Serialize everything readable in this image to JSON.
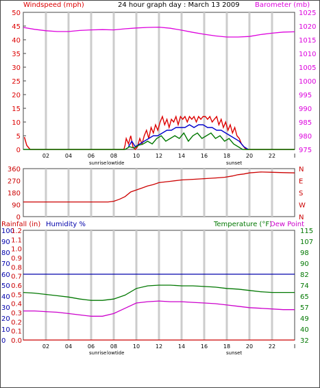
{
  "header": {
    "left_label": "Windspeed (mph)",
    "title": "24 hour graph day : March 13 2009",
    "right_label": "Barometer (mb)"
  },
  "colors": {
    "wind": "#dd0000",
    "gust": "#dd0000",
    "barometer": "#dd00dd",
    "direction": "#cc0000",
    "rain": "#cc0000",
    "humidity": "#0000aa",
    "temperature": "#007700",
    "dewpoint": "#cc00cc",
    "grid": "#cccccc",
    "frame": "#444444"
  },
  "x_axis": {
    "tick_labels": [
      "02",
      "04",
      "06",
      "08",
      "10",
      "12",
      "14",
      "16",
      "18",
      "20",
      "22",
      "I"
    ],
    "markers": {
      "sunrise": "sunrise",
      "lowtide": "lowtide",
      "sunset": "sunset"
    }
  },
  "chart_data": [
    {
      "type": "line",
      "name": "wind-barometer",
      "title": "24 hour graph day : March 13 2009",
      "ylabel": "Windspeed (mph)",
      "ylabel_right": "Barometer (mb)",
      "ylim": [
        0,
        50
      ],
      "yticks": [
        "0",
        "5",
        "10",
        "15",
        "20",
        "25",
        "30",
        "35",
        "40",
        "45",
        "50"
      ],
      "ylim_right": [
        975,
        1025
      ],
      "yticks_right": [
        "975",
        "980",
        "985",
        "990",
        "995",
        "1000",
        "1005",
        "1010",
        "1015",
        "1020",
        "1025"
      ],
      "series": [
        {
          "name": "Windspeed (mph)",
          "axis": "left",
          "values": [
            [
              0.1,
              4.5
            ],
            [
              0.3,
              1.5
            ],
            [
              0.6,
              0
            ],
            [
              1.2,
              0
            ],
            [
              5,
              0
            ],
            [
              8,
              0
            ],
            [
              8.9,
              0
            ],
            [
              9.0,
              1.5
            ],
            [
              9.1,
              4
            ],
            [
              9.3,
              2
            ],
            [
              9.5,
              5
            ],
            [
              9.7,
              1
            ],
            [
              9.9,
              0
            ],
            [
              10.1,
              1
            ],
            [
              10.3,
              4
            ],
            [
              10.5,
              2
            ],
            [
              10.7,
              5
            ],
            [
              10.9,
              7
            ],
            [
              11.1,
              4
            ],
            [
              11.3,
              8
            ],
            [
              11.5,
              6
            ],
            [
              11.7,
              9
            ],
            [
              11.9,
              7
            ],
            [
              12.1,
              10
            ],
            [
              12.3,
              12
            ],
            [
              12.5,
              9
            ],
            [
              12.7,
              11
            ],
            [
              12.9,
              8
            ],
            [
              13.1,
              11
            ],
            [
              13.3,
              10
            ],
            [
              13.5,
              12
            ],
            [
              13.7,
              9
            ],
            [
              13.9,
              12
            ],
            [
              14.1,
              11
            ],
            [
              14.3,
              12
            ],
            [
              14.5,
              10
            ],
            [
              14.7,
              12
            ],
            [
              14.9,
              11
            ],
            [
              15.1,
              12
            ],
            [
              15.3,
              10
            ],
            [
              15.5,
              12
            ],
            [
              15.7,
              11
            ],
            [
              15.9,
              12
            ],
            [
              16.1,
              12
            ],
            [
              16.3,
              11
            ],
            [
              16.5,
              12
            ],
            [
              16.7,
              10
            ],
            [
              16.9,
              11
            ],
            [
              17.1,
              12
            ],
            [
              17.3,
              9
            ],
            [
              17.5,
              11
            ],
            [
              17.7,
              8
            ],
            [
              17.9,
              10
            ],
            [
              18.1,
              7
            ],
            [
              18.3,
              9
            ],
            [
              18.5,
              6
            ],
            [
              18.7,
              8
            ],
            [
              18.9,
              5
            ],
            [
              19.1,
              4
            ],
            [
              19.3,
              2
            ],
            [
              19.5,
              1
            ],
            [
              19.7,
              0
            ],
            [
              20,
              0
            ],
            [
              24,
              0
            ]
          ]
        },
        {
          "name": "Gust",
          "axis": "left",
          "values": [
            [
              9.3,
              1
            ],
            [
              9.6,
              3
            ],
            [
              9.9,
              1
            ],
            [
              10.3,
              2
            ],
            [
              10.7,
              3
            ],
            [
              11.1,
              4
            ],
            [
              11.5,
              5
            ],
            [
              11.9,
              5
            ],
            [
              12.3,
              6
            ],
            [
              12.7,
              7
            ],
            [
              13.1,
              7
            ],
            [
              13.5,
              8
            ],
            [
              13.9,
              8
            ],
            [
              14.3,
              8
            ],
            [
              14.7,
              9
            ],
            [
              15.1,
              8
            ],
            [
              15.5,
              9
            ],
            [
              15.9,
              9
            ],
            [
              16.3,
              8
            ],
            [
              16.7,
              8
            ],
            [
              17.1,
              7
            ],
            [
              17.5,
              7
            ],
            [
              17.9,
              6
            ],
            [
              18.3,
              5
            ],
            [
              18.7,
              4
            ],
            [
              19.1,
              3
            ],
            [
              19.5,
              1
            ],
            [
              19.9,
              0
            ]
          ]
        },
        {
          "name": "Wind avg",
          "axis": "left",
          "values": [
            [
              0,
              0
            ],
            [
              9,
              0
            ],
            [
              9.4,
              1
            ],
            [
              9.8,
              0.5
            ],
            [
              10.2,
              1.5
            ],
            [
              10.6,
              2
            ],
            [
              11,
              3
            ],
            [
              11.4,
              2
            ],
            [
              11.8,
              4
            ],
            [
              12.2,
              5
            ],
            [
              12.6,
              3
            ],
            [
              13,
              4
            ],
            [
              13.4,
              5
            ],
            [
              13.8,
              4
            ],
            [
              14.2,
              6
            ],
            [
              14.6,
              3
            ],
            [
              15,
              5
            ],
            [
              15.4,
              6
            ],
            [
              15.8,
              4
            ],
            [
              16.2,
              5
            ],
            [
              16.6,
              6
            ],
            [
              17,
              4
            ],
            [
              17.4,
              5
            ],
            [
              17.8,
              3
            ],
            [
              18.2,
              4
            ],
            [
              18.6,
              2
            ],
            [
              19,
              1
            ],
            [
              19.4,
              0
            ],
            [
              24,
              0
            ]
          ]
        },
        {
          "name": "Barometer (mb)",
          "axis": "right",
          "values": [
            [
              0,
              1019.5
            ],
            [
              1,
              1018.8
            ],
            [
              2,
              1018.3
            ],
            [
              3,
              1018
            ],
            [
              4,
              1018
            ],
            [
              5,
              1018.4
            ],
            [
              6,
              1018.6
            ],
            [
              7,
              1018.7
            ],
            [
              8,
              1018.6
            ],
            [
              9,
              1019.0
            ],
            [
              10,
              1019.3
            ],
            [
              11,
              1019.5
            ],
            [
              12,
              1019.6
            ],
            [
              13,
              1019.2
            ],
            [
              14,
              1018.5
            ],
            [
              15,
              1017.7
            ],
            [
              16,
              1017
            ],
            [
              17,
              1016.4
            ],
            [
              18,
              1016
            ],
            [
              19,
              1016
            ],
            [
              20,
              1016.2
            ],
            [
              21,
              1016.9
            ],
            [
              22,
              1017.4
            ],
            [
              23,
              1017.8
            ],
            [
              24,
              1017.9
            ]
          ]
        }
      ]
    },
    {
      "type": "line",
      "name": "wind-direction",
      "ylim": [
        0,
        360
      ],
      "yticks": [
        "0",
        "90",
        "180",
        "270",
        "360"
      ],
      "yticks_right": [
        "N",
        "W",
        "S",
        "E",
        "N"
      ],
      "series": [
        {
          "name": "Direction",
          "values": [
            [
              0,
              110
            ],
            [
              2,
              110
            ],
            [
              4,
              110
            ],
            [
              6,
              110
            ],
            [
              7.5,
              110
            ],
            [
              8,
              115
            ],
            [
              8.5,
              130
            ],
            [
              9,
              150
            ],
            [
              9.5,
              185
            ],
            [
              10,
              200
            ],
            [
              10.5,
              215
            ],
            [
              11,
              230
            ],
            [
              11.5,
              240
            ],
            [
              12,
              255
            ],
            [
              13,
              265
            ],
            [
              14,
              275
            ],
            [
              15,
              280
            ],
            [
              16,
              285
            ],
            [
              17,
              290
            ],
            [
              17.8,
              295
            ],
            [
              18.5,
              305
            ],
            [
              19,
              315
            ],
            [
              19.5,
              320
            ],
            [
              20,
              328
            ],
            [
              21,
              335
            ],
            [
              22,
              333
            ],
            [
              23,
              330
            ],
            [
              24,
              328
            ]
          ]
        }
      ]
    },
    {
      "type": "line",
      "name": "temp-humidity-rain",
      "left_label_rain": "Rainfall (in)",
      "left_label_humidity": "Humidity %",
      "right_label_temp": "Temperature (°F)",
      "right_label_dew": "Dew Point",
      "ylim_humidity": [
        0,
        100
      ],
      "yticks_humidity": [
        "0",
        "10",
        "20",
        "30",
        "40",
        "50",
        "60",
        "70",
        "80",
        "90",
        "100"
      ],
      "yticks_rain": [
        "0.0",
        "0.1",
        "0.2",
        "0.3",
        "0.4",
        "0.5",
        "0.6",
        "0.7",
        "0.8",
        "0.9",
        "1.0",
        "1.1",
        "1.2"
      ],
      "ylim_temp": [
        32,
        115
      ],
      "yticks_temp": [
        "32",
        "40",
        "49",
        "57",
        "65",
        "74",
        "82",
        "90",
        "98",
        "107",
        "115"
      ],
      "series": [
        {
          "name": "Rainfall (in)",
          "values": [
            [
              0,
              0
            ],
            [
              24,
              0
            ]
          ]
        },
        {
          "name": "Humidity %",
          "values": [
            [
              0,
              60
            ],
            [
              24,
              60
            ]
          ]
        },
        {
          "name": "Temperature (°F)",
          "values": [
            [
              0,
              68
            ],
            [
              1,
              67.5
            ],
            [
              2,
              66.5
            ],
            [
              3,
              65.5
            ],
            [
              4,
              64.5
            ],
            [
              5,
              63
            ],
            [
              6,
              62
            ],
            [
              7,
              62
            ],
            [
              8,
              63
            ],
            [
              9,
              66
            ],
            [
              10,
              71
            ],
            [
              11,
              73
            ],
            [
              12,
              73.5
            ],
            [
              13,
              73.5
            ],
            [
              14,
              73
            ],
            [
              15,
              73
            ],
            [
              16,
              72.5
            ],
            [
              17,
              72
            ],
            [
              18,
              71
            ],
            [
              19,
              70.5
            ],
            [
              20,
              69.5
            ],
            [
              21,
              68.5
            ],
            [
              22,
              68
            ],
            [
              23,
              68
            ],
            [
              24,
              68
            ]
          ]
        },
        {
          "name": "Dew Point",
          "values": [
            [
              0,
              54
            ],
            [
              1,
              54
            ],
            [
              2,
              53.5
            ],
            [
              3,
              53
            ],
            [
              4,
              52
            ],
            [
              5,
              51
            ],
            [
              6,
              50
            ],
            [
              7,
              50
            ],
            [
              8,
              52
            ],
            [
              9,
              56
            ],
            [
              10,
              60
            ],
            [
              11,
              61
            ],
            [
              12,
              61.5
            ],
            [
              13,
              61
            ],
            [
              14,
              61
            ],
            [
              15,
              60.5
            ],
            [
              16,
              60
            ],
            [
              17,
              59.5
            ],
            [
              18,
              58.5
            ],
            [
              19,
              57.5
            ],
            [
              20,
              56.5
            ],
            [
              21,
              56
            ],
            [
              22,
              55.5
            ],
            [
              23,
              55
            ],
            [
              24,
              55
            ]
          ]
        }
      ]
    }
  ]
}
